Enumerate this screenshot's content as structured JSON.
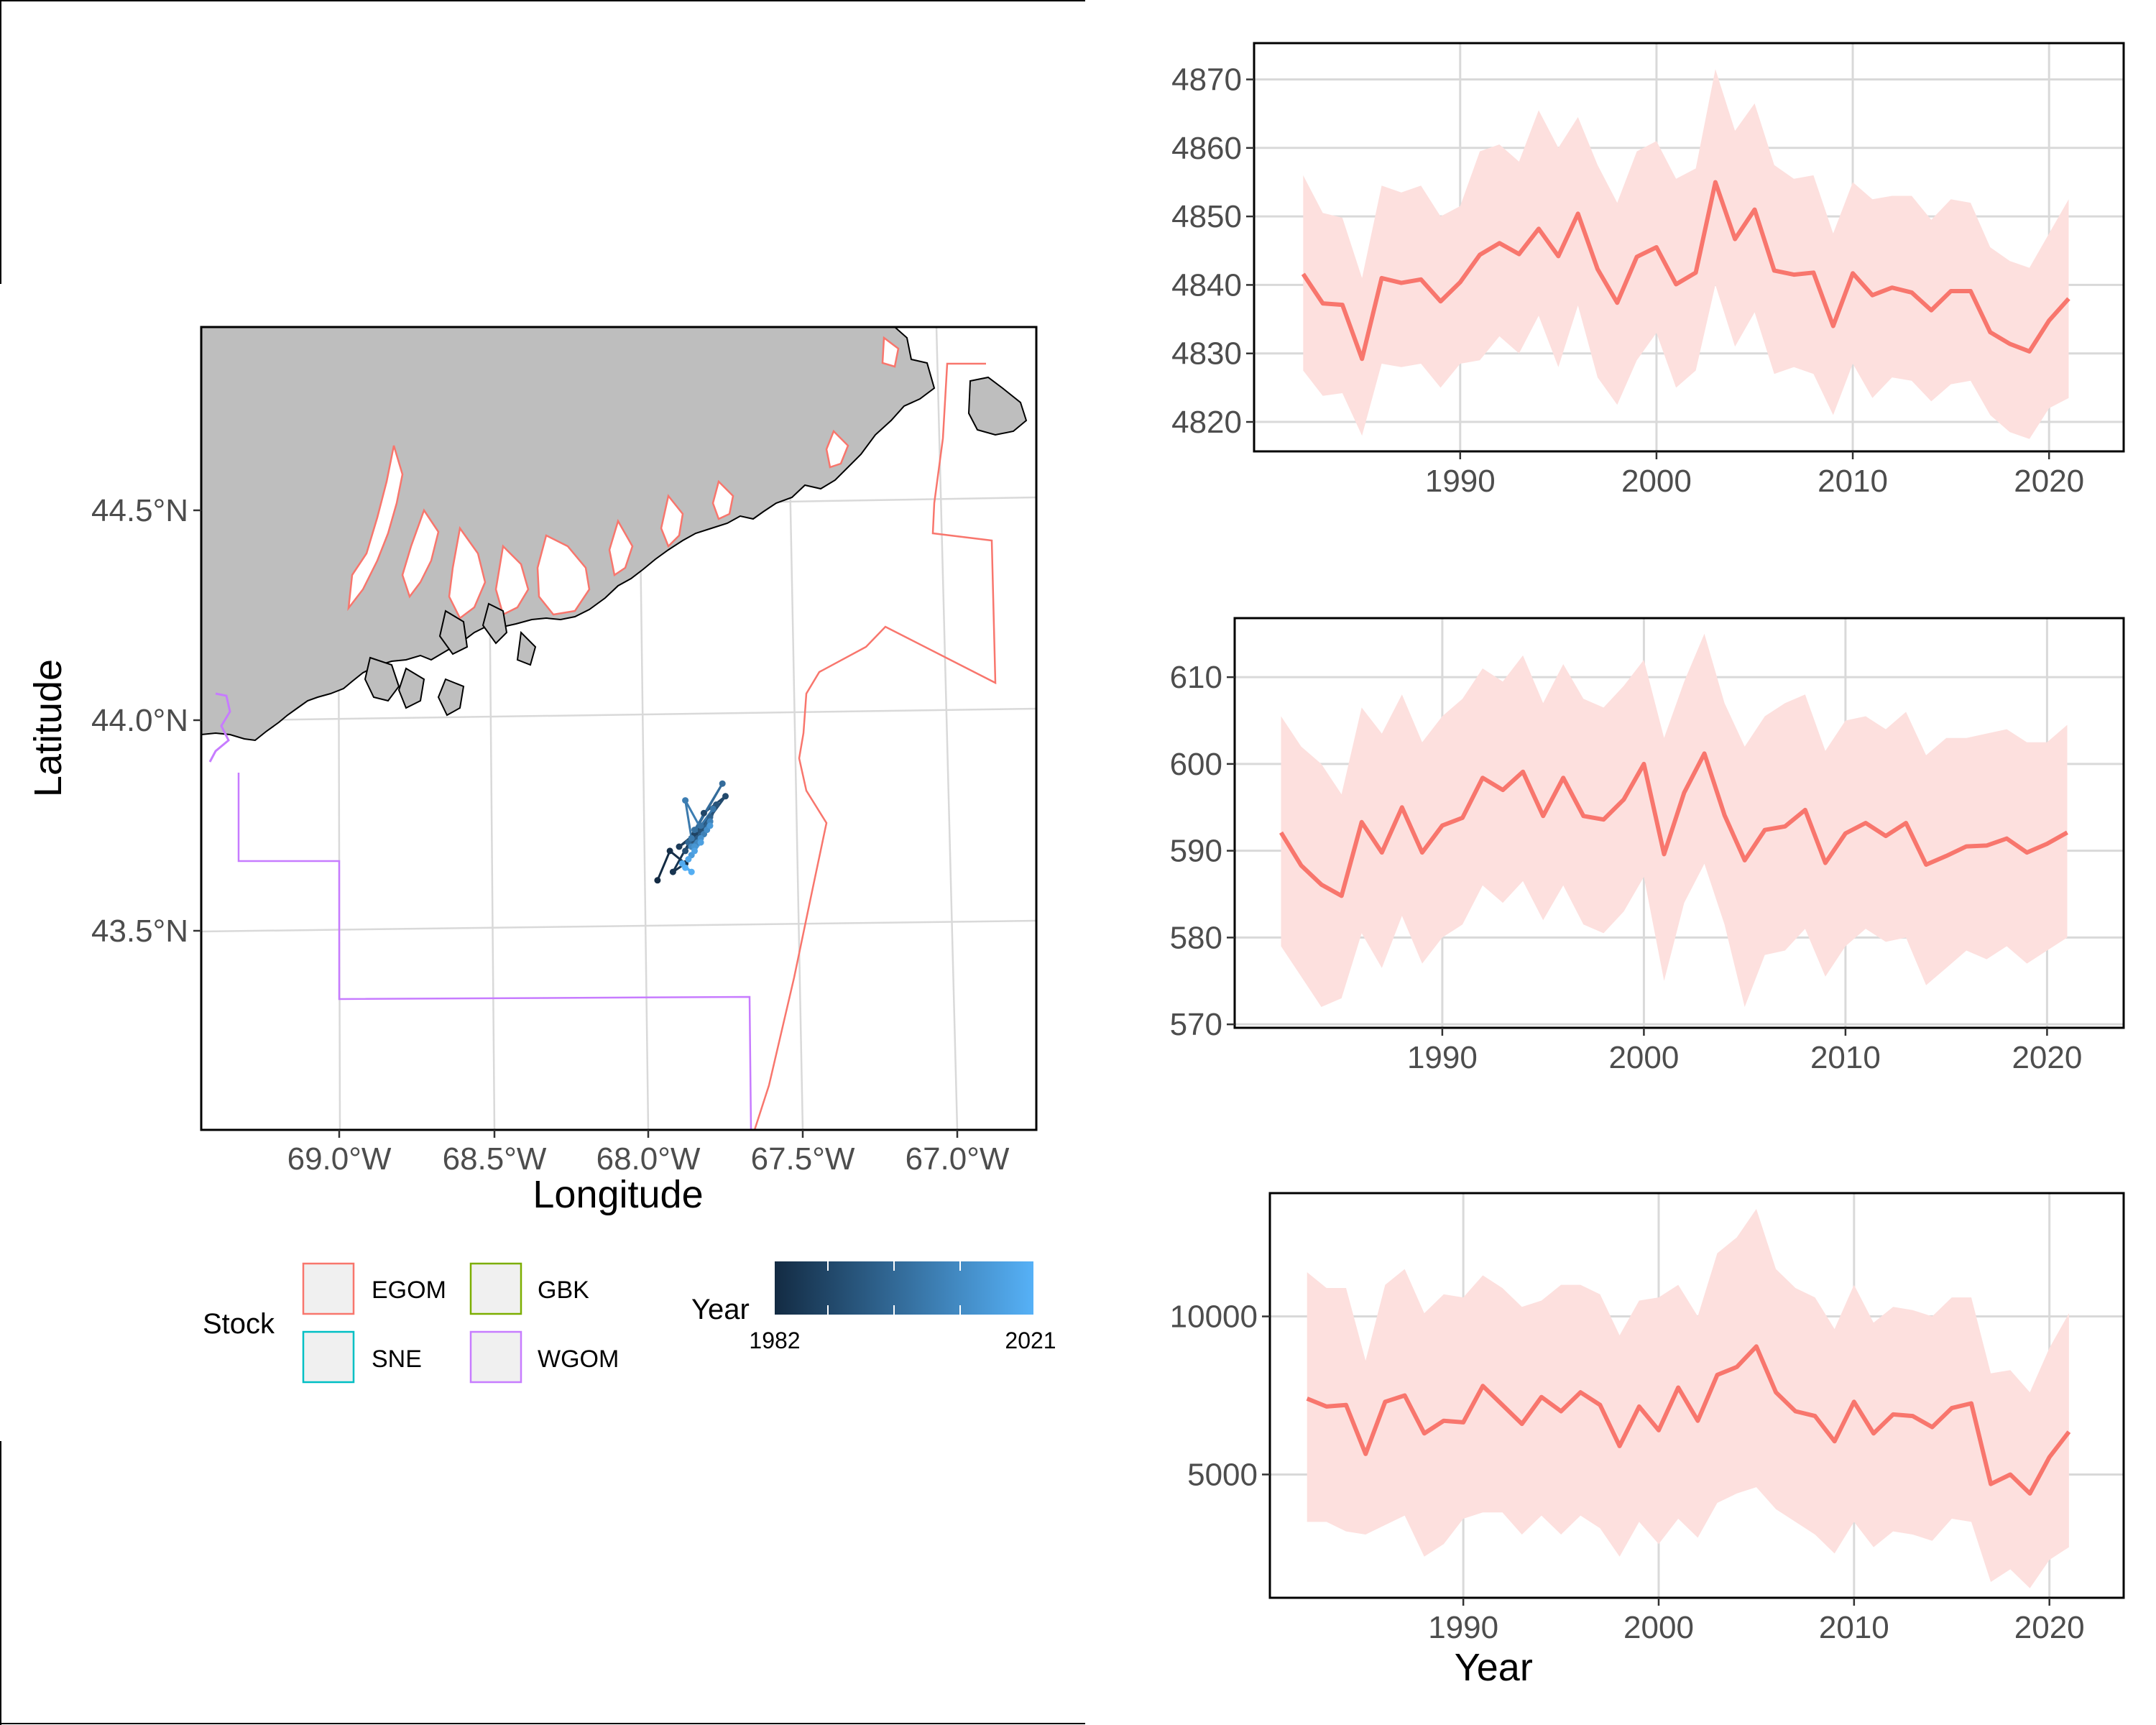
{
  "colors": {
    "stock_egom": "#F8766D",
    "stock_gbk": "#7CAE00",
    "stock_sne": "#00BFC4",
    "stock_wgom": "#C77CFF",
    "land": "#BEBEBE",
    "ribbon": "#FDE0DE",
    "grid": "#D9D9D9",
    "year_low": "#132B43",
    "year_high": "#56B1F7"
  },
  "map": {
    "xlabel": "Longitude",
    "ylabel": "Latitude",
    "x_ticks": [
      "69.0°W",
      "68.5°W",
      "68.0°W",
      "67.5°W",
      "67.0°W"
    ],
    "y_ticks": [
      "44.5°N",
      "44.0°N",
      "43.5°N"
    ],
    "legend": {
      "stock_title": "Stock",
      "stock_items": [
        "EGOM",
        "GBK",
        "SNE",
        "WGOM"
      ],
      "year_title": "Year",
      "year_min": "1982",
      "year_max": "2021"
    },
    "track": {
      "name": "Year-colored centroid track",
      "lon": [
        -67.97,
        -67.93,
        -67.88,
        -67.92,
        -67.86,
        -67.9,
        -67.8,
        -67.85,
        -67.82,
        -67.75,
        -67.88,
        -67.83,
        -67.78,
        -67.8,
        -67.84,
        -67.86,
        -67.8,
        -67.82,
        -67.87,
        -67.76,
        -67.85,
        -67.83,
        -67.79,
        -67.86,
        -67.88,
        -67.82,
        -67.8,
        -67.84,
        -67.86,
        -67.81,
        -67.83,
        -67.85,
        -67.8,
        -67.86,
        -67.83,
        -67.85,
        -67.87,
        -67.89,
        -67.86,
        -67.88
      ],
      "lat": [
        43.62,
        43.69,
        43.66,
        43.64,
        43.72,
        43.7,
        43.76,
        43.73,
        43.78,
        43.82,
        43.69,
        43.74,
        43.8,
        43.76,
        43.72,
        43.7,
        43.77,
        43.73,
        43.71,
        43.85,
        43.74,
        43.75,
        43.79,
        43.72,
        43.81,
        43.73,
        43.76,
        43.71,
        43.7,
        43.74,
        43.72,
        43.7,
        43.75,
        43.68,
        43.71,
        43.69,
        43.67,
        43.66,
        43.64,
        43.65
      ]
    }
  },
  "chart_data": [
    {
      "type": "line",
      "title": "",
      "xlabel": "",
      "ylabel": "",
      "xlim": [
        1979.5,
        2023.8
      ],
      "ylim": [
        4815.7,
        4875.3
      ],
      "x_ticks": [
        "1990",
        "2000",
        "2010",
        "2020"
      ],
      "y_ticks": [
        "4820",
        "4830",
        "4840",
        "4850",
        "4860",
        "4870"
      ],
      "x": [
        1982,
        1983,
        1984,
        1985,
        1986,
        1987,
        1988,
        1989,
        1990,
        1991,
        1992,
        1993,
        1994,
        1995,
        1996,
        1997,
        1998,
        1999,
        2000,
        2001,
        2002,
        2003,
        2004,
        2005,
        2006,
        2007,
        2008,
        2009,
        2010,
        2011,
        2012,
        2013,
        2014,
        2015,
        2016,
        2017,
        2018,
        2019,
        2020,
        2021
      ],
      "series": [
        {
          "values": [
            4841.6,
            4837.3,
            4837.1,
            4829.2,
            4841.0,
            4840.3,
            4840.8,
            4837.6,
            4840.4,
            4844.4,
            4846.1,
            4844.5,
            4848.2,
            4844.2,
            4850.4,
            4842.3,
            4837.4,
            4844.1,
            4845.5,
            4840.1,
            4841.8,
            4855.0,
            4846.7,
            4851.0,
            4842.1,
            4841.5,
            4841.8,
            4834.0,
            4841.7,
            4838.5,
            4839.6,
            4838.9,
            4836.3,
            4839.1,
            4839.1,
            4833.1,
            4831.4,
            4830.3,
            4834.8,
            4838.0
          ],
          "lower": [
            4827.5,
            4823.8,
            4824.2,
            4818.0,
            4828.5,
            4828.0,
            4828.5,
            4825.0,
            4828.5,
            4829.0,
            4832.5,
            4830.0,
            4835.5,
            4828.0,
            4837.0,
            4826.5,
            4822.5,
            4829.0,
            4833.0,
            4825.0,
            4827.5,
            4840.0,
            4831.0,
            4836.0,
            4827.0,
            4828.0,
            4827.0,
            4821.0,
            4828.5,
            4823.5,
            4826.5,
            4826.0,
            4823.0,
            4825.5,
            4826.0,
            4821.0,
            4818.5,
            4817.5,
            4822.0,
            4823.5
          ],
          "upper": [
            4856.0,
            4850.5,
            4849.8,
            4841.0,
            4854.5,
            4853.5,
            4854.5,
            4850.0,
            4851.5,
            4859.5,
            4860.5,
            4858.0,
            4865.5,
            4860.0,
            4864.5,
            4857.5,
            4852.0,
            4859.5,
            4861.0,
            4855.5,
            4857.0,
            4871.5,
            4862.5,
            4866.5,
            4857.5,
            4855.5,
            4856.0,
            4847.5,
            4855.0,
            4852.5,
            4853.0,
            4853.0,
            4849.5,
            4852.5,
            4852.0,
            4845.5,
            4843.5,
            4842.5,
            4847.5,
            4852.5
          ]
        }
      ]
    },
    {
      "type": "line",
      "title": "",
      "xlabel": "",
      "ylabel": "",
      "xlim": [
        1979.7,
        2023.8
      ],
      "ylim": [
        569.6,
        616.8
      ],
      "x_ticks": [
        "1990",
        "2000",
        "2010",
        "2020"
      ],
      "y_ticks": [
        "570",
        "580",
        "590",
        "600",
        "610"
      ],
      "x": [
        1982,
        1983,
        1984,
        1985,
        1986,
        1987,
        1988,
        1989,
        1990,
        1991,
        1992,
        1993,
        1994,
        1995,
        1996,
        1997,
        1998,
        1999,
        2000,
        2001,
        2002,
        2003,
        2004,
        2005,
        2006,
        2007,
        2008,
        2009,
        2010,
        2011,
        2012,
        2013,
        2014,
        2015,
        2016,
        2017,
        2018,
        2019,
        2020,
        2021
      ],
      "series": [
        {
          "values": [
            592.1,
            588.3,
            586.1,
            584.8,
            593.3,
            589.8,
            595.0,
            589.8,
            592.9,
            593.8,
            598.4,
            597.0,
            599.1,
            594.0,
            598.4,
            594.0,
            593.6,
            595.9,
            600.0,
            589.6,
            596.7,
            601.2,
            594.1,
            588.9,
            592.4,
            592.8,
            594.7,
            588.6,
            592.0,
            593.2,
            591.7,
            593.2,
            588.4,
            589.4,
            590.5,
            590.6,
            591.4,
            589.8,
            590.8,
            592.1
          ],
          "lower": [
            579.0,
            575.5,
            572.0,
            573.0,
            580.5,
            576.5,
            582.5,
            577.0,
            580.0,
            581.5,
            586.0,
            584.0,
            586.5,
            582.0,
            586.0,
            581.5,
            580.5,
            583.0,
            587.0,
            575.0,
            584.0,
            588.5,
            581.5,
            572.0,
            578.0,
            578.5,
            581.0,
            575.5,
            579.0,
            581.0,
            579.5,
            580.0,
            574.5,
            576.5,
            578.5,
            577.5,
            579.0,
            577.0,
            578.5,
            580.0
          ],
          "upper": [
            605.5,
            602.0,
            600.0,
            596.5,
            606.5,
            603.5,
            608.0,
            602.5,
            605.5,
            607.5,
            611.0,
            609.5,
            612.5,
            607.0,
            611.5,
            607.5,
            606.5,
            609.0,
            612.0,
            603.0,
            609.5,
            615.0,
            607.0,
            602.0,
            605.5,
            607.0,
            608.0,
            601.5,
            605.0,
            605.5,
            604.0,
            606.0,
            601.0,
            603.0,
            603.0,
            603.5,
            604.0,
            602.5,
            602.5,
            604.5
          ]
        }
      ]
    },
    {
      "type": "line",
      "title": "",
      "xlabel": "Year",
      "ylabel": "",
      "xlim": [
        1980.1,
        2023.8
      ],
      "ylim": [
        1100,
        13900
      ],
      "x_ticks": [
        "1990",
        "2000",
        "2010",
        "2020"
      ],
      "y_ticks": [
        "5000",
        "10000"
      ],
      "x": [
        1982,
        1983,
        1984,
        1985,
        1986,
        1987,
        1988,
        1989,
        1990,
        1991,
        1992,
        1993,
        1994,
        1995,
        1996,
        1997,
        1998,
        1999,
        2000,
        2001,
        2002,
        2003,
        2004,
        2005,
        2006,
        2007,
        2008,
        2009,
        2010,
        2011,
        2012,
        2013,
        2014,
        2015,
        2016,
        2017,
        2018,
        2019,
        2020,
        2021
      ],
      "series": [
        {
          "values": [
            7400,
            7150,
            7200,
            5650,
            7300,
            7500,
            6300,
            6700,
            6650,
            7800,
            7200,
            6600,
            7450,
            7000,
            7600,
            7200,
            5900,
            7150,
            6400,
            7750,
            6700,
            8150,
            8400,
            9050,
            7600,
            7000,
            6850,
            6050,
            7300,
            6300,
            6900,
            6850,
            6500,
            7100,
            7250,
            4700,
            5000,
            4400,
            5550,
            6350
          ],
          "lower": [
            3500,
            3500,
            3200,
            3100,
            3400,
            3700,
            2400,
            2800,
            3600,
            3800,
            3800,
            3100,
            3700,
            3100,
            3700,
            3300,
            2400,
            3500,
            2800,
            3600,
            3000,
            4100,
            4400,
            4600,
            3900,
            3500,
            3100,
            2500,
            3500,
            2700,
            3200,
            3100,
            2900,
            3600,
            3500,
            1600,
            2000,
            1400,
            2300,
            2700
          ],
          "upper": [
            11400,
            10900,
            10900,
            8600,
            11000,
            11500,
            10100,
            10700,
            10600,
            11300,
            10900,
            10300,
            10500,
            11000,
            11000,
            10700,
            9400,
            10500,
            10600,
            11000,
            10000,
            12000,
            12500,
            13400,
            11500,
            10900,
            10600,
            9600,
            11000,
            9800,
            10300,
            10200,
            10000,
            10600,
            10600,
            8200,
            8300,
            7600,
            9000,
            10100
          ]
        }
      ]
    }
  ]
}
